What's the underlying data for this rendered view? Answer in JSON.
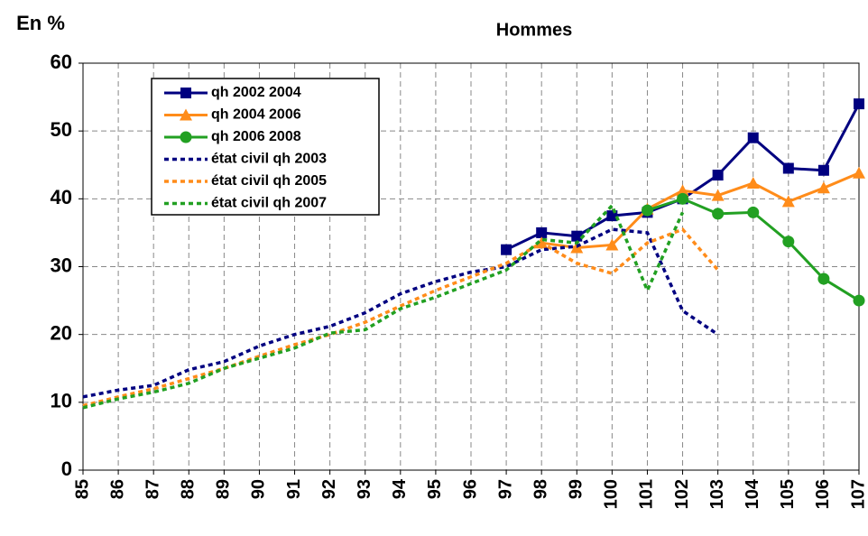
{
  "chart_data": {
    "type": "line",
    "title": "Hommes",
    "y_label": "En %",
    "xlim": [
      85,
      107
    ],
    "xticks": [
      85,
      86,
      87,
      88,
      89,
      90,
      91,
      92,
      93,
      94,
      95,
      96,
      97,
      98,
      99,
      100,
      101,
      102,
      103,
      104,
      105,
      106,
      107
    ],
    "ylim": [
      0,
      60
    ],
    "yticks": [
      0,
      10,
      20,
      30,
      40,
      50,
      60
    ],
    "grid": true,
    "legend": "top-left",
    "series": [
      {
        "name": "qh 2002 2004",
        "color": "#000080",
        "marker": "square",
        "dash": false,
        "x": [
          97,
          98,
          99,
          100,
          101,
          102,
          103,
          104,
          105,
          106,
          107
        ],
        "values": [
          32.5,
          35,
          34.5,
          37.5,
          38,
          40,
          43.5,
          49,
          44.5,
          44.2,
          54
        ]
      },
      {
        "name": "qh 2004 2006",
        "color": "#ff8c1a",
        "marker": "triangle",
        "dash": false,
        "x": [
          98,
          99,
          100,
          101,
          102,
          103,
          104,
          105,
          106,
          107
        ],
        "values": [
          33.5,
          32.8,
          33.2,
          38.5,
          41.2,
          40.5,
          42.3,
          39.6,
          41.6,
          43.8
        ]
      },
      {
        "name": "qh 2006 2008",
        "color": "#22a022",
        "marker": "circle",
        "dash": false,
        "x": [
          101,
          102,
          103,
          104,
          105,
          106,
          107
        ],
        "values": [
          38.3,
          40,
          37.8,
          38,
          33.7,
          28.2,
          25
        ]
      },
      {
        "name": "état civil qh 2003",
        "color": "#000080",
        "marker": "none",
        "dash": true,
        "x": [
          85,
          86,
          87,
          88,
          89,
          90,
          91,
          92,
          93,
          94,
          95,
          96,
          97,
          98,
          99,
          100,
          101,
          102,
          103
        ],
        "values": [
          10.8,
          11.8,
          12.5,
          14.8,
          16,
          18.3,
          20,
          21.2,
          23.2,
          26,
          27.8,
          29.2,
          30,
          32.5,
          33,
          35.5,
          35,
          23.5,
          20
        ]
      },
      {
        "name": "état civil qh 2005",
        "color": "#ff8c1a",
        "marker": "none",
        "dash": true,
        "x": [
          85,
          86,
          87,
          88,
          89,
          90,
          91,
          92,
          93,
          94,
          95,
          96,
          97,
          98,
          99,
          100,
          101,
          102,
          103
        ],
        "values": [
          9.5,
          10.8,
          12,
          13.5,
          15,
          16.8,
          18.5,
          20,
          21.8,
          24.2,
          26.5,
          28.5,
          30.5,
          33.5,
          30.5,
          29,
          33.5,
          35.5,
          29.5
        ]
      },
      {
        "name": "état civil qh 2007",
        "color": "#22a022",
        "marker": "none",
        "dash": true,
        "x": [
          85,
          86,
          87,
          88,
          89,
          90,
          91,
          92,
          93,
          94,
          95,
          96,
          97,
          98,
          99,
          100,
          101,
          102
        ],
        "values": [
          9.2,
          10.5,
          11.5,
          12.8,
          15,
          16.5,
          18,
          20.2,
          20.7,
          23.8,
          25.5,
          27.5,
          29.5,
          34,
          33.5,
          39,
          26.5,
          38
        ]
      }
    ]
  }
}
